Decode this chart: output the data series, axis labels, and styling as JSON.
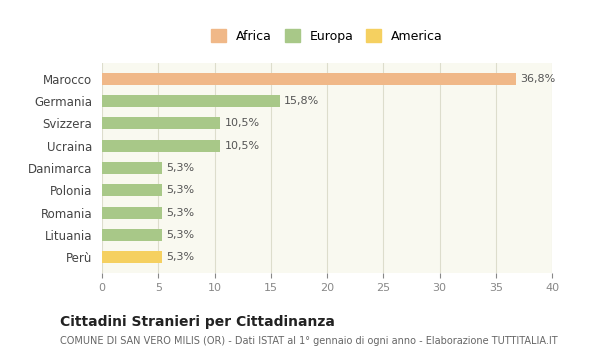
{
  "categories": [
    "Marocco",
    "Germania",
    "Svizzera",
    "Ucraina",
    "Danimarca",
    "Polonia",
    "Romania",
    "Lituania",
    "Perù"
  ],
  "values": [
    36.8,
    15.8,
    10.5,
    10.5,
    5.3,
    5.3,
    5.3,
    5.3,
    5.3
  ],
  "labels": [
    "36,8%",
    "15,8%",
    "10,5%",
    "10,5%",
    "5,3%",
    "5,3%",
    "5,3%",
    "5,3%",
    "5,3%"
  ],
  "colors": [
    "#f0b888",
    "#a8c888",
    "#a8c888",
    "#a8c888",
    "#a8c888",
    "#a8c888",
    "#a8c888",
    "#a8c888",
    "#f5d060"
  ],
  "legend": [
    {
      "label": "Africa",
      "color": "#f0b888"
    },
    {
      "label": "Europa",
      "color": "#a8c888"
    },
    {
      "label": "America",
      "color": "#f5d060"
    }
  ],
  "xlim": [
    0,
    40
  ],
  "xticks": [
    0,
    5,
    10,
    15,
    20,
    25,
    30,
    35,
    40
  ],
  "title": "Cittadini Stranieri per Cittadinanza",
  "subtitle": "COMUNE DI SAN VERO MILIS (OR) - Dati ISTAT al 1° gennaio di ogni anno - Elaborazione TUTTITALIA.IT",
  "background_color": "#ffffff",
  "plot_background": "#f9f9f0",
  "grid_color": "#ddddcc",
  "bar_height": 0.55
}
